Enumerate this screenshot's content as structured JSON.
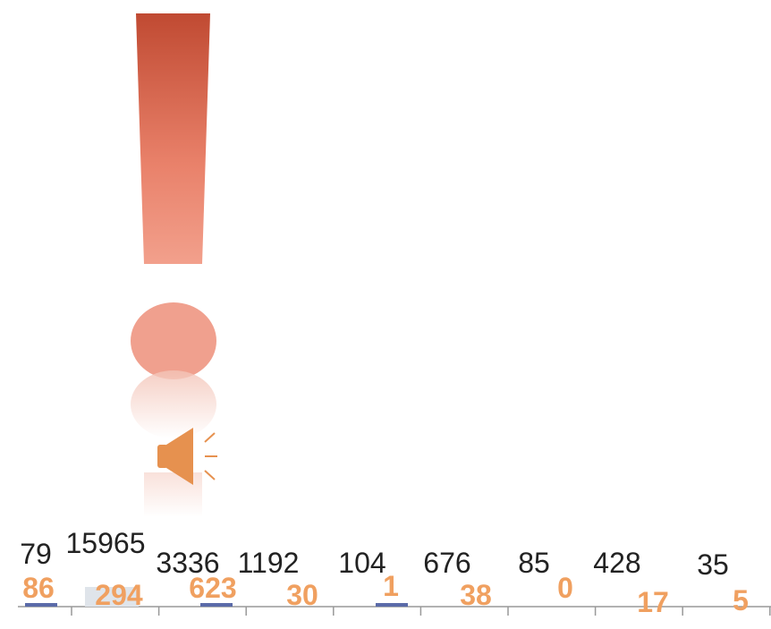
{
  "labels_top": [
    79,
    15965,
    3336,
    1192,
    104,
    676,
    85,
    428,
    35
  ],
  "labels_bottom": [
    86,
    294,
    623,
    30,
    1,
    38,
    0,
    17,
    5
  ]
}
